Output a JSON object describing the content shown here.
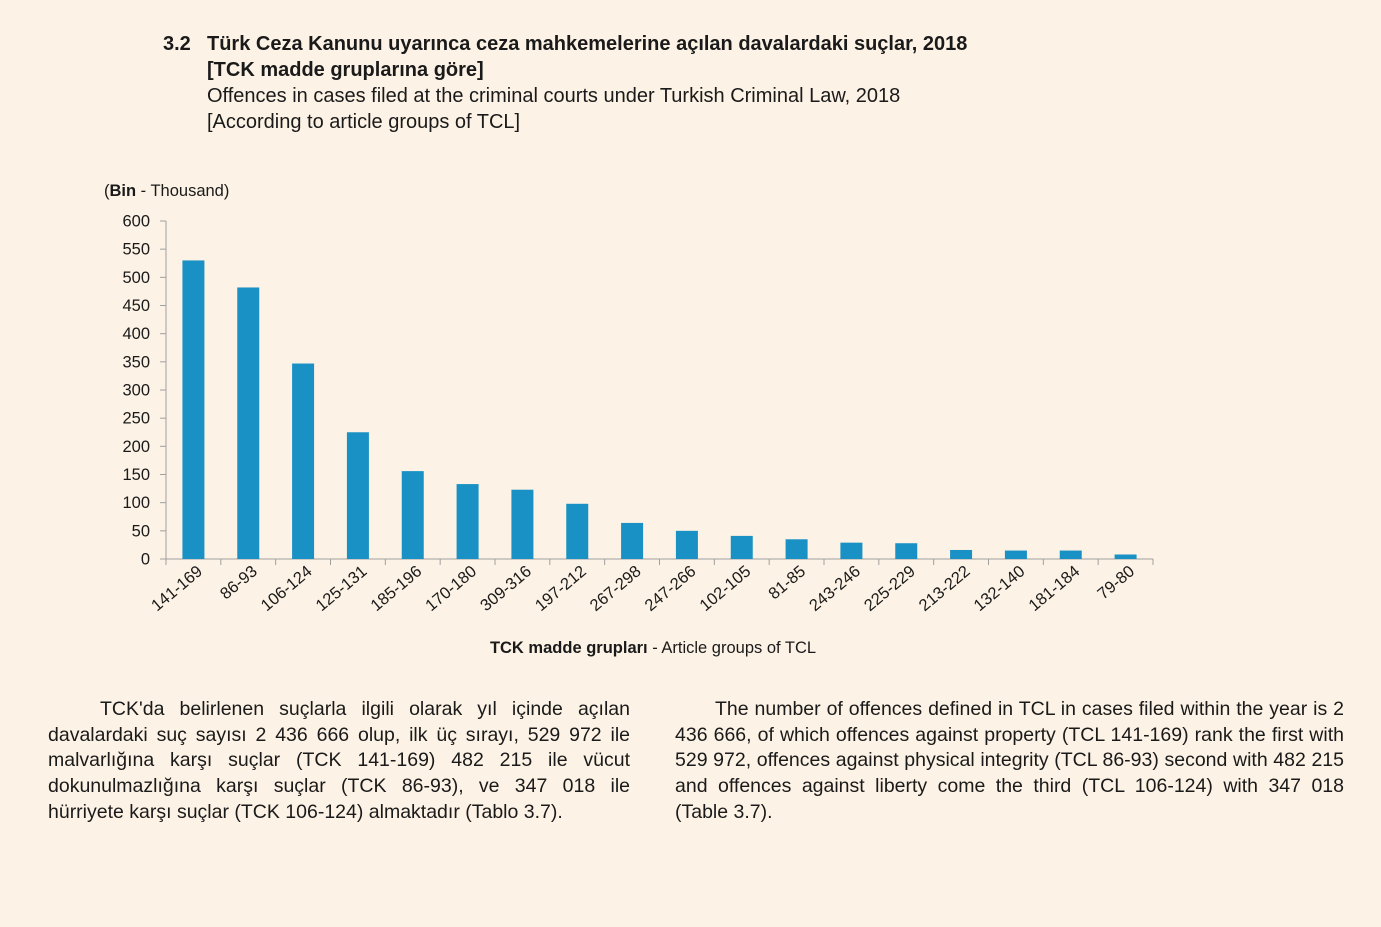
{
  "heading": {
    "number": "3.2",
    "title_tr_line1": "Türk Ceza Kanunu uyarınca ceza mahkemelerine açılan davalardaki suçlar, 2018",
    "title_tr_line2": "[TCK madde gruplarına göre]",
    "title_en_line1": "Offences in cases filed at the criminal courts under Turkish Criminal Law, 2018",
    "title_en_line2": "[According to article groups of TCL]"
  },
  "chart_data": {
    "type": "bar",
    "ylabel_bold": "Bin",
    "ylabel_rest": " - Thousand)",
    "ylabel_open": "(",
    "xlabel_bold": "TCK madde grupları",
    "xlabel_rest": " - Article groups of TCL",
    "categories": [
      "141-169",
      "86-93",
      "106-124",
      "125-131",
      "185-196",
      "170-180",
      "309-316",
      "197-212",
      "267-298",
      "247-266",
      "102-105",
      "81-85",
      "243-246",
      "225-229",
      "213-222",
      "132-140",
      "181-184",
      "79-80"
    ],
    "values": [
      530,
      482,
      347,
      225,
      156,
      133,
      123,
      98,
      64,
      50,
      41,
      35,
      29,
      28,
      16,
      15,
      15,
      8
    ],
    "ylim": [
      0,
      600
    ],
    "yticks": [
      0,
      50,
      100,
      150,
      200,
      250,
      300,
      350,
      400,
      450,
      500,
      550,
      600
    ],
    "bar_color": "#1a91c5",
    "axis_color": "#a0a0a0",
    "grid": false
  },
  "text": {
    "tr": "TCK'da belirlenen suçlarla ilgili olarak yıl içinde açılan davalardaki suç sayısı 2 436 666 olup, ilk üç sırayı, 529 972 ile malvarlığına karşı suçlar (TCK 141-169) 482 215 ile vücut dokunulmazlığına karşı suçlar (TCK 86-93),  ve 347 018 ile hürriyete karşı suçlar (TCK 106-124) almaktadır (Tablo 3.7).",
    "en": "The number of offences defined in TCL in cases filed within the year is 2 436 666, of which offences against property  (TCL 141-169) rank the first with 529 972, offences against physical integrity (TCL 86-93) second with 482 215 and offences against liberty come the third (TCL 106-124) with 347 018 (Table 3.7)."
  }
}
